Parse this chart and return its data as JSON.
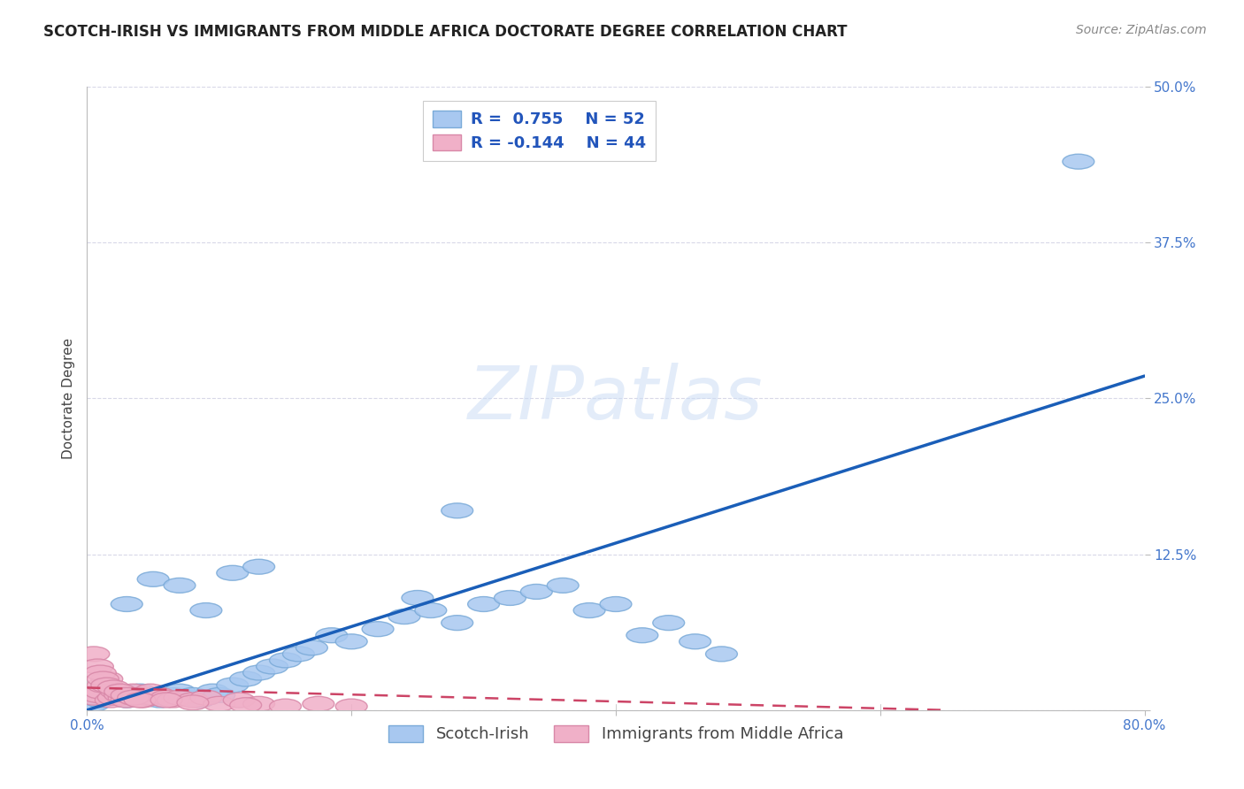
{
  "title": "SCOTCH-IRISH VS IMMIGRANTS FROM MIDDLE AFRICA DOCTORATE DEGREE CORRELATION CHART",
  "source": "Source: ZipAtlas.com",
  "ylabel": "Doctorate Degree",
  "xlim": [
    0.0,
    0.8
  ],
  "ylim": [
    0.0,
    0.5
  ],
  "xticks": [
    0.0,
    0.2,
    0.4,
    0.6,
    0.8
  ],
  "xticklabels": [
    "0.0%",
    "",
    "",
    "",
    "80.0%"
  ],
  "yticks": [
    0.0,
    0.125,
    0.25,
    0.375,
    0.5
  ],
  "yticklabels": [
    "",
    "12.5%",
    "25.0%",
    "37.5%",
    "50.0%"
  ],
  "background_color": "#ffffff",
  "grid_color": "#d8d8e8",
  "watermark": "ZIPatlas",
  "scotch_irish_color": "#a8c8f0",
  "scotch_irish_edge_color": "#7aaad8",
  "immigrants_color": "#f0b0c8",
  "immigrants_edge_color": "#d888a8",
  "trend_blue": "#1a5eb8",
  "trend_pink": "#cc4466",
  "R_blue": 0.755,
  "N_blue": 52,
  "R_pink": -0.144,
  "N_pink": 44,
  "scotch_irish_x": [
    0.005,
    0.01,
    0.015,
    0.02,
    0.025,
    0.03,
    0.035,
    0.04,
    0.045,
    0.05,
    0.055,
    0.06,
    0.065,
    0.07,
    0.075,
    0.08,
    0.085,
    0.09,
    0.095,
    0.1,
    0.11,
    0.12,
    0.13,
    0.14,
    0.15,
    0.16,
    0.17,
    0.185,
    0.2,
    0.22,
    0.24,
    0.26,
    0.28,
    0.3,
    0.32,
    0.34,
    0.36,
    0.38,
    0.4,
    0.42,
    0.44,
    0.46,
    0.48,
    0.03,
    0.05,
    0.07,
    0.09,
    0.11,
    0.13,
    0.25,
    0.28,
    0.75
  ],
  "scotch_irish_y": [
    0.005,
    0.008,
    0.01,
    0.01,
    0.012,
    0.008,
    0.012,
    0.015,
    0.01,
    0.012,
    0.008,
    0.01,
    0.012,
    0.015,
    0.01,
    0.012,
    0.008,
    0.01,
    0.015,
    0.012,
    0.02,
    0.025,
    0.03,
    0.035,
    0.04,
    0.045,
    0.05,
    0.06,
    0.055,
    0.065,
    0.075,
    0.08,
    0.07,
    0.085,
    0.09,
    0.095,
    0.1,
    0.08,
    0.085,
    0.06,
    0.07,
    0.055,
    0.045,
    0.085,
    0.105,
    0.1,
    0.08,
    0.11,
    0.115,
    0.09,
    0.16,
    0.44
  ],
  "immigrants_x": [
    0.005,
    0.008,
    0.01,
    0.012,
    0.015,
    0.018,
    0.02,
    0.022,
    0.025,
    0.028,
    0.03,
    0.032,
    0.035,
    0.038,
    0.04,
    0.042,
    0.045,
    0.048,
    0.05,
    0.055,
    0.06,
    0.065,
    0.07,
    0.08,
    0.09,
    0.1,
    0.115,
    0.13,
    0.15,
    0.175,
    0.2,
    0.005,
    0.008,
    0.01,
    0.012,
    0.015,
    0.02,
    0.025,
    0.03,
    0.035,
    0.04,
    0.06,
    0.08,
    0.12
  ],
  "immigrants_y": [
    0.01,
    0.012,
    0.015,
    0.02,
    0.025,
    0.008,
    0.01,
    0.015,
    0.012,
    0.01,
    0.008,
    0.012,
    0.015,
    0.01,
    0.012,
    0.008,
    0.01,
    0.015,
    0.01,
    0.012,
    0.01,
    0.008,
    0.01,
    0.008,
    0.01,
    0.005,
    0.008,
    0.005,
    0.003,
    0.005,
    0.003,
    0.045,
    0.035,
    0.03,
    0.025,
    0.02,
    0.018,
    0.015,
    0.012,
    0.01,
    0.008,
    0.008,
    0.006,
    0.004
  ],
  "blue_line_x": [
    0.0,
    0.8
  ],
  "blue_line_y": [
    0.0,
    0.268
  ],
  "pink_line_x": [
    0.0,
    0.65
  ],
  "pink_line_y": [
    0.018,
    0.0
  ],
  "title_fontsize": 12,
  "source_fontsize": 10,
  "axis_label_fontsize": 11,
  "tick_fontsize": 11,
  "legend_fontsize": 13
}
